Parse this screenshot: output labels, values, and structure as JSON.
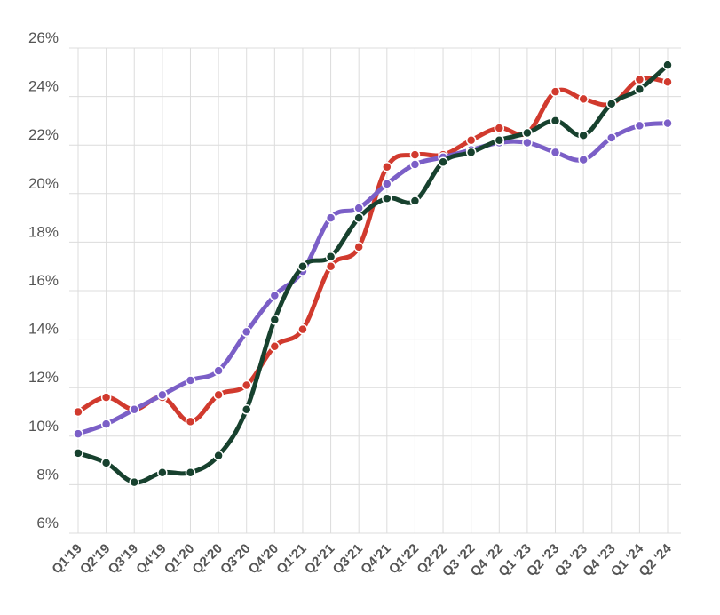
{
  "chart_data": {
    "type": "line",
    "title": "",
    "xlabel": "",
    "ylabel": "",
    "ylim": [
      6,
      26
    ],
    "y_ticks": [
      6,
      8,
      10,
      12,
      14,
      16,
      18,
      20,
      22,
      24,
      26
    ],
    "y_tick_suffix": "%",
    "grid": true,
    "legend": "none",
    "categories": [
      "Q1'19",
      "Q2'19",
      "Q3'19",
      "Q4'19",
      "Q1'20",
      "Q2'20",
      "Q3'20",
      "Q4'20",
      "Q1'21",
      "Q2'21",
      "Q3'21",
      "Q4'21",
      "Q1'22",
      "Q2'22",
      "Q3 '22",
      "Q4 '22",
      "Q1 '23",
      "Q2 '23",
      "Q3 '23",
      "Q4 '23",
      "Q1 '24",
      "Q2 '24"
    ],
    "series": [
      {
        "color": "#d13a2e",
        "values": [
          11.0,
          11.6,
          11.1,
          11.6,
          10.6,
          11.7,
          12.1,
          13.7,
          14.4,
          17.0,
          17.8,
          21.1,
          21.6,
          21.6,
          22.2,
          22.7,
          22.5,
          24.2,
          23.9,
          23.7,
          24.7,
          24.6
        ]
      },
      {
        "color": "#7b5fc7",
        "values": [
          10.1,
          10.5,
          11.1,
          11.7,
          12.3,
          12.7,
          14.3,
          15.8,
          16.8,
          19.0,
          19.4,
          20.4,
          21.2,
          21.5,
          21.8,
          22.1,
          22.1,
          21.7,
          21.4,
          22.3,
          22.8,
          22.9
        ]
      },
      {
        "color": "#17412e",
        "values": [
          9.3,
          8.9,
          8.1,
          8.5,
          8.5,
          9.2,
          11.1,
          14.8,
          17.0,
          17.4,
          19.0,
          19.8,
          19.7,
          21.3,
          21.7,
          22.2,
          22.5,
          23.0,
          22.4,
          23.7,
          24.3,
          25.3
        ]
      }
    ]
  }
}
